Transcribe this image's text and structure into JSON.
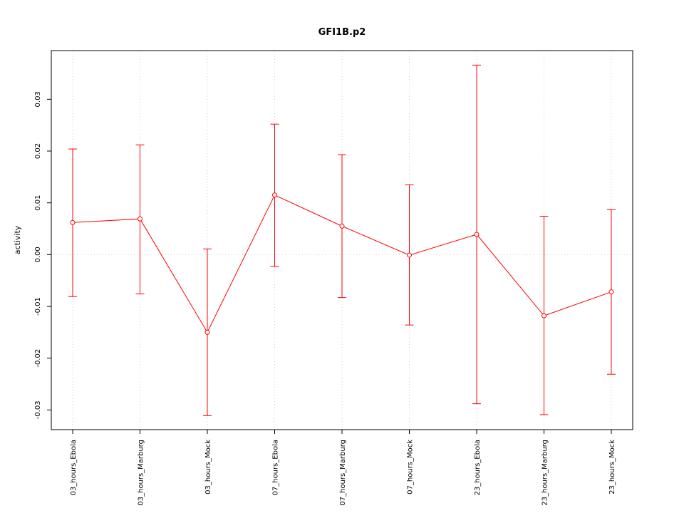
{
  "chart_data": {
    "type": "line",
    "title": "GFI1B.p2",
    "xlabel": "",
    "ylabel": "activity",
    "categories": [
      "03_hours_Ebola",
      "03_hours_Marburg",
      "03_hours_Mock",
      "07_hours_Ebola",
      "07_hours_Marburg",
      "07_hours_Mock",
      "23_hours_Ebola",
      "23_hours_Marburg",
      "23_hours_Mock"
    ],
    "series": [
      {
        "values": [
          0.0062,
          0.0069,
          -0.015,
          0.0115,
          0.0055,
          -0.0001,
          0.0039,
          -0.0118,
          -0.0072
        ],
        "upper": [
          0.0204,
          0.0212,
          0.0011,
          0.0252,
          0.0193,
          0.0135,
          0.0366,
          0.0074,
          0.0087
        ],
        "lower": [
          -0.0081,
          -0.0076,
          -0.0311,
          -0.0023,
          -0.0083,
          -0.0136,
          -0.0288,
          -0.0309,
          -0.0231
        ]
      }
    ],
    "yticks": [
      "-0.03",
      "-0.02",
      "-0.01",
      "0.00",
      "0.01",
      "0.02",
      "0.03"
    ],
    "ylim": [
      -0.0338,
      0.0394
    ],
    "grid": true,
    "colors": {
      "series": "#ff0000",
      "grid": "#d3d3d3",
      "axis": "#000000"
    }
  }
}
